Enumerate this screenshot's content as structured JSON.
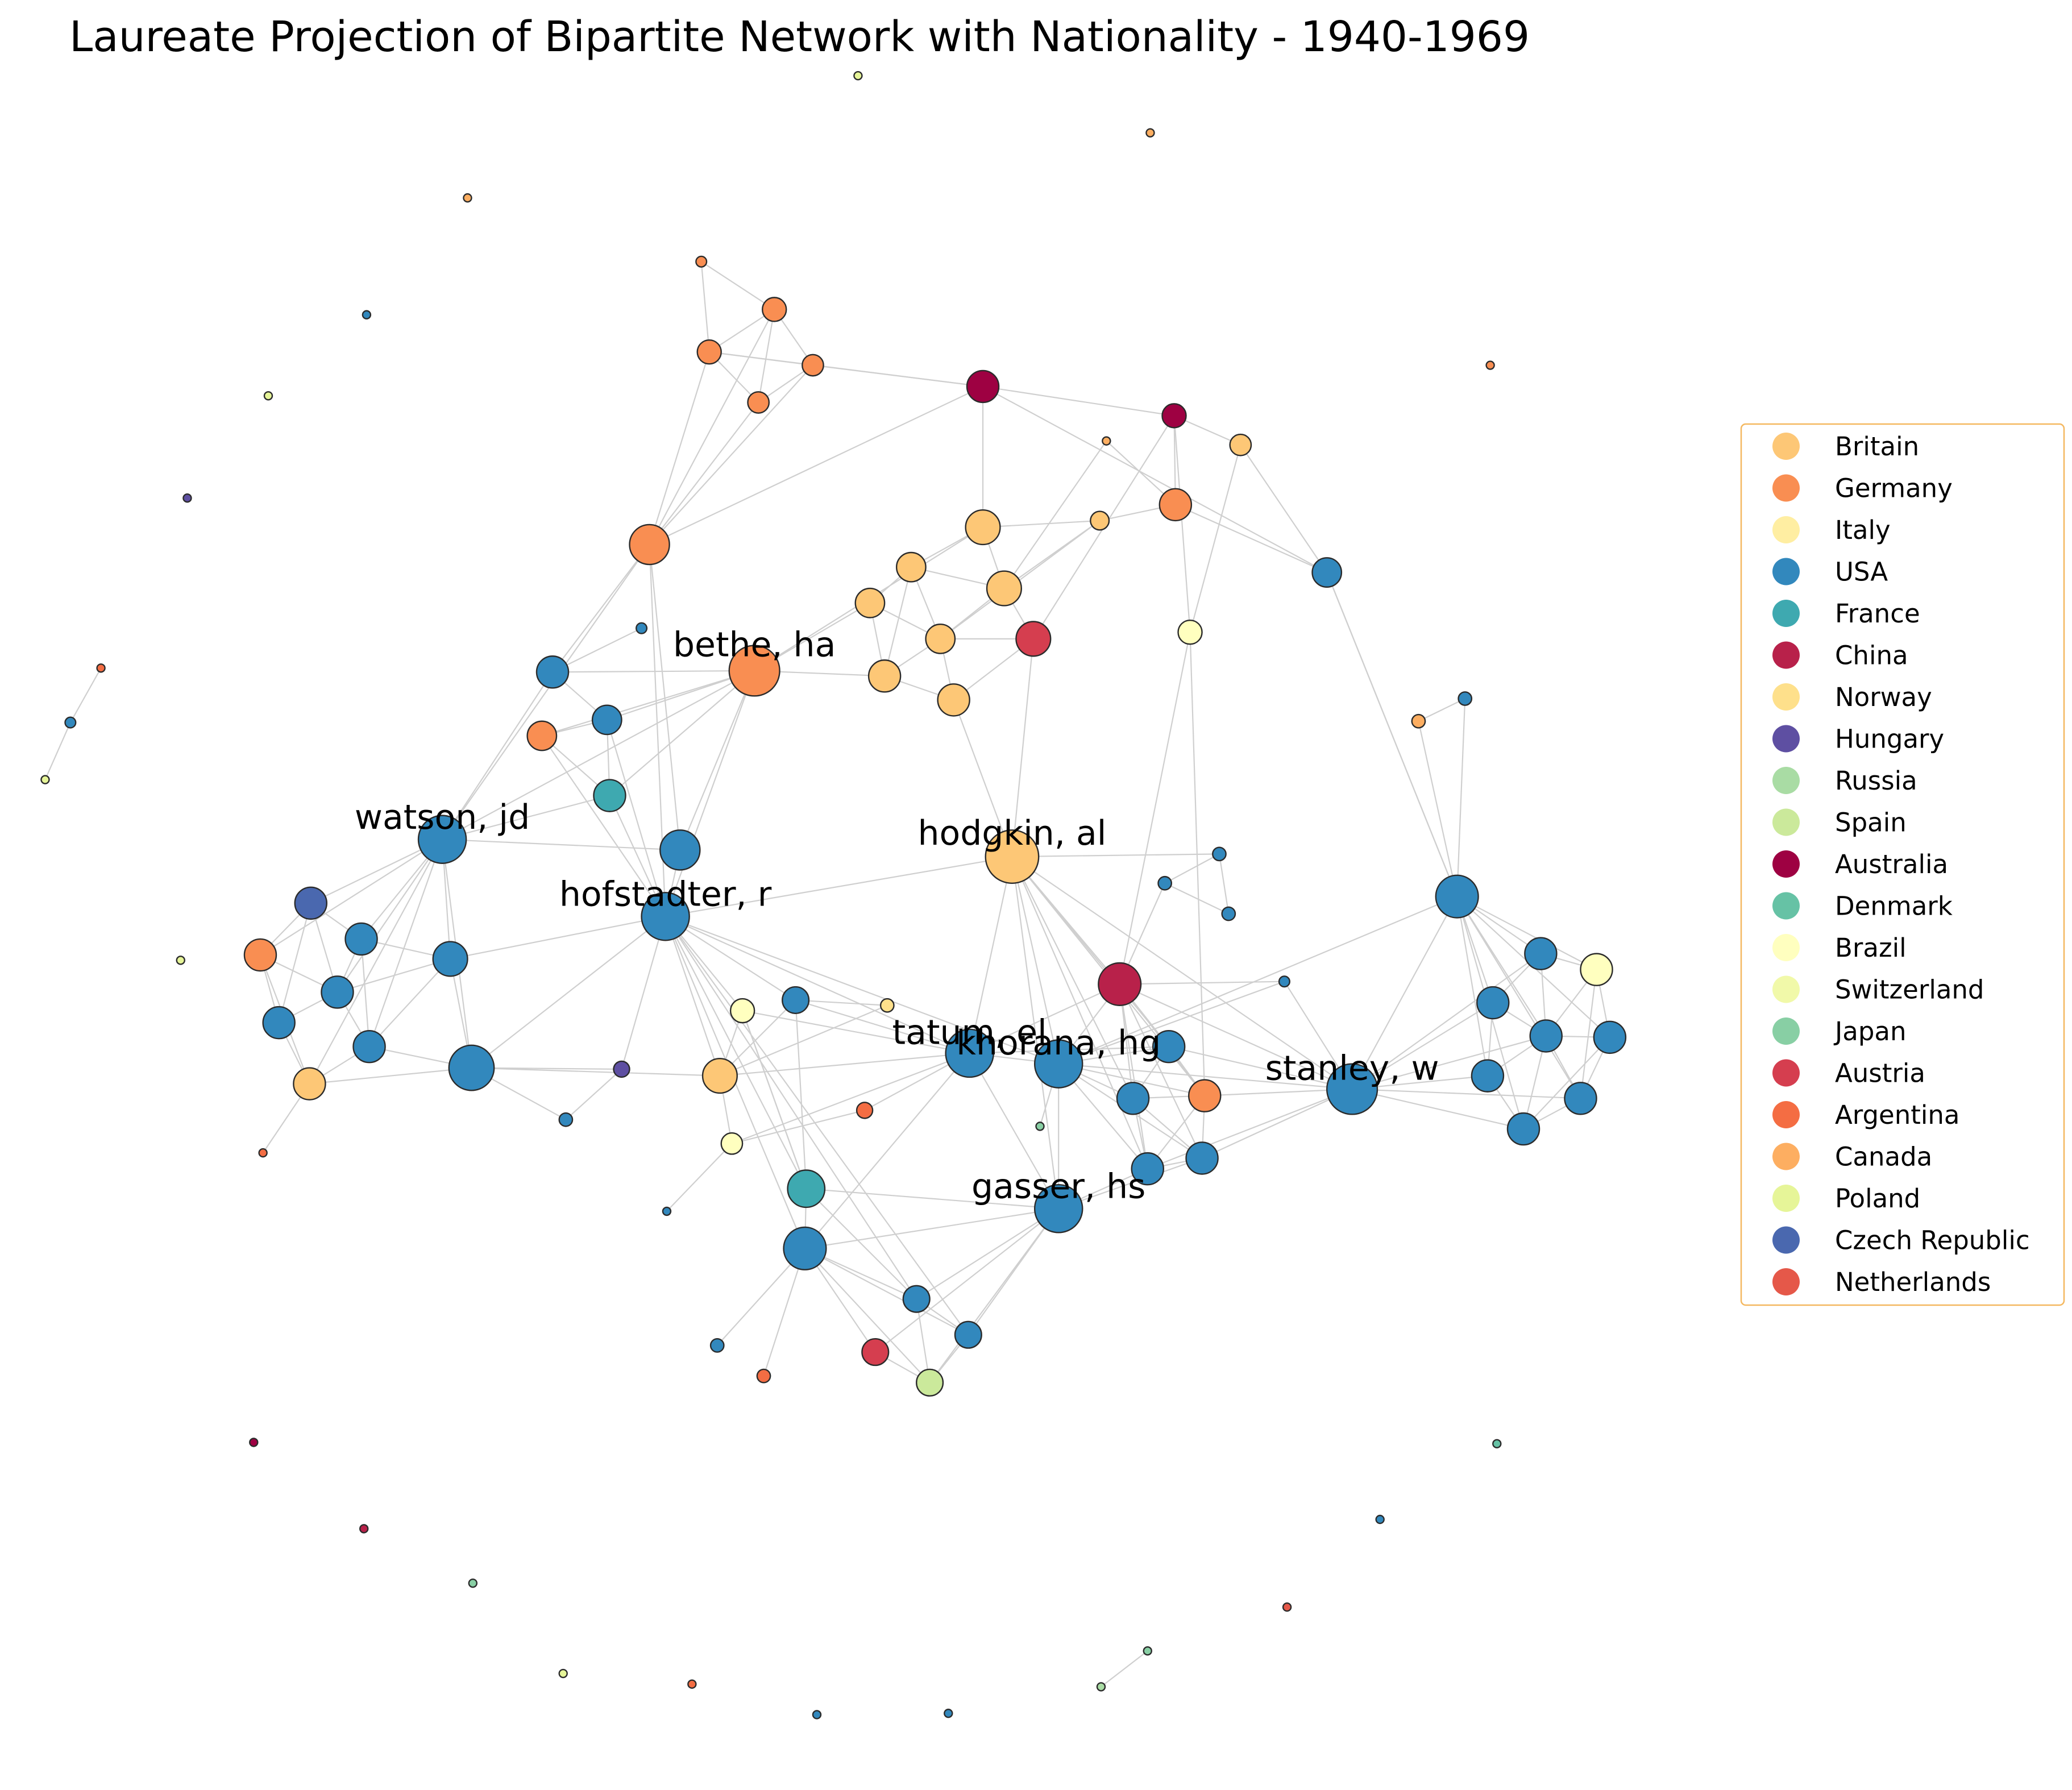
{
  "title": "Laureate Projection of Bipartite Network with Nationality - 1940-1969",
  "legend": [
    {
      "label": "Britain",
      "color": "#fdc776"
    },
    {
      "label": "Germany",
      "color": "#f98e52"
    },
    {
      "label": "Italy",
      "color": "#ffeea2"
    },
    {
      "label": "USA",
      "color": "#3288bd"
    },
    {
      "label": "France",
      "color": "#3ea9b0"
    },
    {
      "label": "China",
      "color": "#b8214a"
    },
    {
      "label": "Norway",
      "color": "#fee08b"
    },
    {
      "label": "Hungary",
      "color": "#5e4fa2"
    },
    {
      "label": "Russia",
      "color": "#a9dca4"
    },
    {
      "label": "Spain",
      "color": "#cbe99b"
    },
    {
      "label": "Australia",
      "color": "#9e0142"
    },
    {
      "label": "Denmark",
      "color": "#66c2a5"
    },
    {
      "label": "Brazil",
      "color": "#ffffbf"
    },
    {
      "label": "Switzerland",
      "color": "#f1f9a9"
    },
    {
      "label": "Japan",
      "color": "#88cfa4"
    },
    {
      "label": "Austria",
      "color": "#d53e4f"
    },
    {
      "label": "Argentina",
      "color": "#f46d43"
    },
    {
      "label": "Canada",
      "color": "#fdae61"
    },
    {
      "label": "Poland",
      "color": "#e6f598"
    },
    {
      "label": "Czech Republic",
      "color": "#4a68af"
    },
    {
      "label": "Netherlands",
      "color": "#e55849"
    }
  ],
  "labeled_nodes": [
    {
      "id": "bethe",
      "label": "bethe, ha"
    },
    {
      "id": "watson",
      "label": "watson, jd"
    },
    {
      "id": "hodgkin",
      "label": "hodgkin, al"
    },
    {
      "id": "hofstadter",
      "label": "hofstadter, r"
    },
    {
      "id": "tatum",
      "label": "tatum, el"
    },
    {
      "id": "khorana",
      "label": "khorana, hg"
    },
    {
      "id": "stanley",
      "label": "stanley, w"
    },
    {
      "id": "gasser",
      "label": "gasser, hs"
    }
  ]
}
